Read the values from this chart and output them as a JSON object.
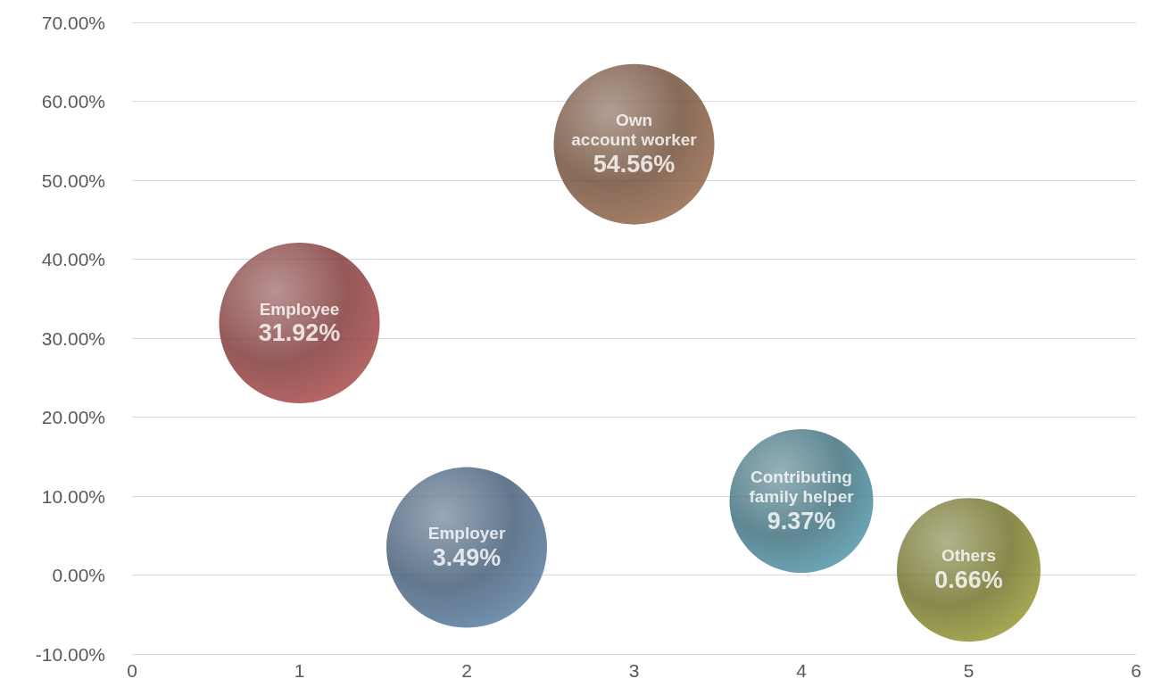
{
  "chart_data": {
    "type": "bubble",
    "xlim": [
      0,
      6
    ],
    "xticks": [
      0,
      1,
      2,
      3,
      4,
      5,
      6
    ],
    "ylim": [
      -10,
      70
    ],
    "yticks": [
      {
        "value": -10,
        "label": "-10.00%"
      },
      {
        "value": 0,
        "label": "0.00%"
      },
      {
        "value": 10,
        "label": "10.00%"
      },
      {
        "value": 20,
        "label": "20.00%"
      },
      {
        "value": 30,
        "label": "30.00%"
      },
      {
        "value": 40,
        "label": "40.00%"
      },
      {
        "value": 50,
        "label": "50.00%"
      },
      {
        "value": 60,
        "label": "60.00%"
      },
      {
        "value": 70,
        "label": "70.00%"
      }
    ],
    "grid": "y",
    "series": [
      {
        "name": "Employee",
        "color": "#7a2f2f",
        "x": [
          1
        ],
        "values": [
          31.92
        ],
        "sizes": [
          1
        ],
        "value_labels": [
          "31.92%"
        ]
      },
      {
        "name": "Employer",
        "color": "#3b5672",
        "x": [
          2
        ],
        "values": [
          3.49
        ],
        "sizes": [
          1
        ],
        "value_labels": [
          "3.49%"
        ]
      },
      {
        "name": "Own account worker",
        "color": "#6a4630",
        "x": [
          3
        ],
        "values": [
          54.56
        ],
        "sizes": [
          1
        ],
        "value_labels": [
          "54.56%"
        ]
      },
      {
        "name": "Contributing family helper",
        "color": "#366a78",
        "x": [
          4
        ],
        "values": [
          9.37
        ],
        "sizes": [
          0.8
        ],
        "value_labels": [
          "9.37%"
        ]
      },
      {
        "name": "Others",
        "color": "#6a6c1f",
        "x": [
          5
        ],
        "values": [
          0.66
        ],
        "sizes": [
          0.8
        ],
        "value_labels": [
          "0.66%"
        ]
      }
    ]
  }
}
